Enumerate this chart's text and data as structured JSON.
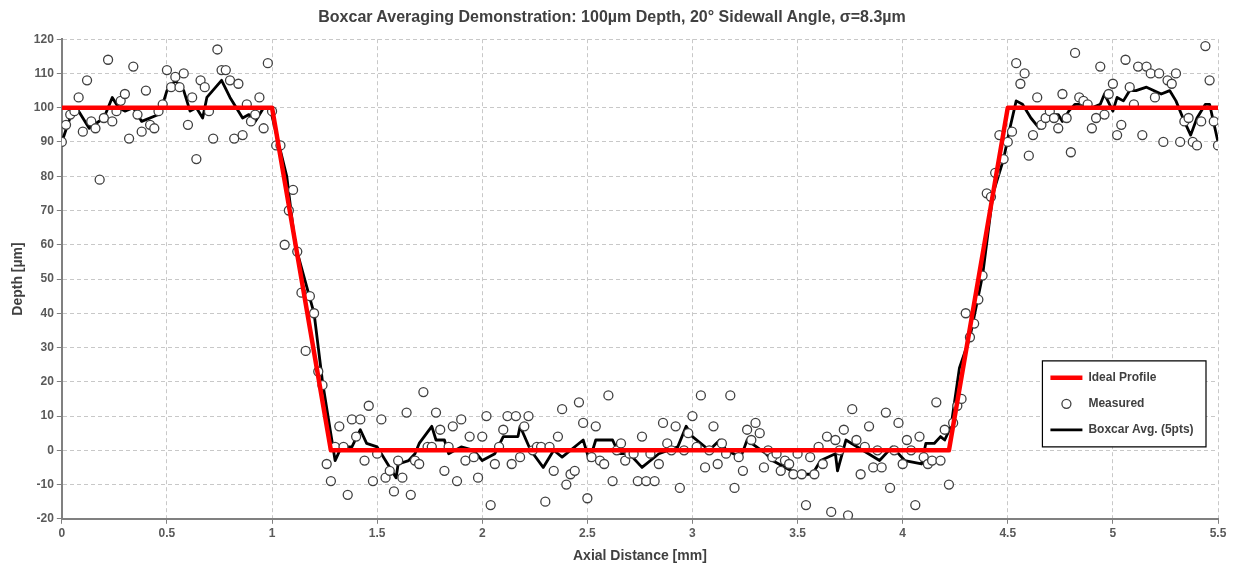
{
  "chart_data": {
    "type": "scatter",
    "title": "Boxcar Averaging Demonstration: 100µm Depth, 20° Sidewall Angle, σ=8.3µm",
    "xlabel": "Axial Distance [mm]",
    "ylabel": "Depth [µm]",
    "xlim": [
      0,
      5.5
    ],
    "xticks": [
      0,
      0.5,
      1,
      1.5,
      2,
      2.5,
      3,
      3.5,
      4,
      4.5,
      5,
      5.5
    ],
    "ylim": [
      -20,
      120
    ],
    "yticks": [
      -20,
      -10,
      0,
      10,
      20,
      30,
      40,
      50,
      60,
      70,
      80,
      90,
      100,
      110,
      120
    ],
    "grid": true,
    "legend": "bottom right",
    "series": [
      {
        "name": "Ideal Profile",
        "type": "line",
        "color": "#ff0000",
        "marker": "none",
        "line_style": "solid",
        "x": [
          0,
          1,
          1.28,
          4.22,
          4.5,
          5.5
        ],
        "values": [
          100,
          100,
          0,
          0,
          100,
          100
        ]
      },
      {
        "name": "Measured",
        "type": "scatter",
        "color": "#404040",
        "marker": "circle",
        "x": [
          0,
          0.02,
          0.04,
          0.06,
          0.08,
          0.1,
          0.12,
          0.14,
          0.16,
          0.18,
          0.2,
          0.22,
          0.24,
          0.26,
          0.28,
          0.3,
          0.32,
          0.34,
          0.36,
          0.38,
          0.4,
          0.42,
          0.44,
          0.46,
          0.48,
          0.5,
          0.52,
          0.54,
          0.56,
          0.58,
          0.6,
          0.62,
          0.64,
          0.66,
          0.68,
          0.7,
          0.72,
          0.74,
          0.76,
          0.78,
          0.8,
          0.82,
          0.84,
          0.86,
          0.88,
          0.9,
          0.92,
          0.94,
          0.96,
          0.98,
          1,
          1.02,
          1.04,
          1.06,
          1.08,
          1.1,
          1.12,
          1.14,
          1.16,
          1.18,
          1.2,
          1.22,
          1.24,
          1.26,
          1.28,
          1.3,
          1.32,
          1.34,
          1.36,
          1.38,
          1.4,
          1.42,
          1.44,
          1.46,
          1.48,
          1.5,
          1.52,
          1.54,
          1.56,
          1.58,
          1.6,
          1.62,
          1.64,
          1.66,
          1.68,
          1.7,
          1.72,
          1.74,
          1.76,
          1.78,
          1.8,
          1.82,
          1.84,
          1.86,
          1.88,
          1.9,
          1.92,
          1.94,
          1.96,
          1.98,
          2,
          2.02,
          2.04,
          2.06,
          2.08,
          2.1,
          2.12,
          2.14,
          2.16,
          2.18,
          2.2,
          2.22,
          2.24,
          2.26,
          2.28,
          2.3,
          2.32,
          2.34,
          2.36,
          2.38,
          2.4,
          2.42,
          2.44,
          2.46,
          2.48,
          2.5,
          2.52,
          2.54,
          2.56,
          2.58,
          2.6,
          2.62,
          2.64,
          2.66,
          2.68,
          2.7,
          2.72,
          2.74,
          2.76,
          2.78,
          2.8,
          2.82,
          2.84,
          2.86,
          2.88,
          2.9,
          2.92,
          2.94,
          2.96,
          2.98,
          3,
          3.02,
          3.04,
          3.06,
          3.08,
          3.1,
          3.12,
          3.14,
          3.16,
          3.18,
          3.2,
          3.22,
          3.24,
          3.26,
          3.28,
          3.3,
          3.32,
          3.34,
          3.36,
          3.38,
          3.4,
          3.42,
          3.44,
          3.46,
          3.48,
          3.5,
          3.52,
          3.54,
          3.56,
          3.58,
          3.6,
          3.62,
          3.64,
          3.66,
          3.68,
          3.7,
          3.72,
          3.74,
          3.76,
          3.78,
          3.8,
          3.82,
          3.84,
          3.86,
          3.88,
          3.9,
          3.92,
          3.94,
          3.96,
          3.98,
          4,
          4.02,
          4.04,
          4.06,
          4.08,
          4.1,
          4.12,
          4.14,
          4.16,
          4.18,
          4.2,
          4.22,
          4.24,
          4.26,
          4.28,
          4.3,
          4.32,
          4.34,
          4.36,
          4.38,
          4.4,
          4.42,
          4.44,
          4.46,
          4.48,
          4.5,
          4.52,
          4.54,
          4.56,
          4.58,
          4.6,
          4.62,
          4.64,
          4.66,
          4.68,
          4.7,
          4.72,
          4.74,
          4.76,
          4.78,
          4.8,
          4.82,
          4.84,
          4.86,
          4.88,
          4.9,
          4.92,
          4.94,
          4.96,
          4.98,
          5,
          5.02,
          5.04,
          5.06,
          5.08,
          5.1,
          5.12,
          5.14,
          5.16,
          5.18,
          5.2,
          5.22,
          5.24,
          5.26,
          5.28,
          5.3,
          5.32,
          5.34,
          5.36,
          5.38,
          5.4,
          5.42,
          5.44,
          5.46,
          5.48,
          5.5
        ],
        "values": [
          90,
          95,
          98,
          99,
          103,
          93,
          108,
          96,
          94,
          79,
          97,
          114,
          96,
          99,
          102,
          104,
          91,
          112,
          98,
          93,
          105,
          95,
          94,
          99,
          101,
          111,
          106,
          109,
          106,
          110,
          95,
          103,
          85,
          108,
          106,
          99,
          91,
          117,
          111,
          111,
          108,
          91,
          107,
          92,
          101,
          96,
          98,
          103,
          94,
          113,
          99,
          89,
          89,
          60,
          70,
          76,
          58,
          46,
          29,
          45,
          40,
          23,
          19,
          -4,
          -9,
          1,
          7,
          1,
          -13,
          9,
          4,
          9,
          -3,
          13,
          -9,
          -1,
          9,
          -8,
          -6,
          -12,
          -3,
          -8,
          11,
          -13,
          -3,
          -4,
          17,
          1,
          1,
          11,
          6,
          -6,
          1,
          7,
          -9,
          9,
          -3,
          4,
          -2,
          -8,
          4,
          10,
          -16,
          -4,
          1,
          6,
          10,
          -4,
          10,
          -2,
          7,
          10,
          0,
          1,
          1,
          -15,
          1,
          -6,
          4,
          12,
          -10,
          -7,
          -6,
          14,
          8,
          -14,
          -2,
          7,
          -3,
          -4,
          16,
          -9,
          0,
          2,
          -3,
          -1,
          -1,
          -9,
          4,
          -9,
          -1,
          -9,
          -4,
          8,
          2,
          0,
          7,
          -11,
          0,
          5,
          10,
          1,
          16,
          -5,
          0,
          7,
          -4,
          2,
          -1,
          16,
          -11,
          -2,
          -6,
          6,
          3,
          8,
          5,
          -5,
          0,
          -2,
          -1,
          -6,
          -3,
          -4,
          -7,
          -1,
          -7,
          -16,
          -2,
          -7,
          1,
          -4,
          4,
          -18,
          3,
          0,
          6,
          -19,
          12,
          3,
          -7,
          1,
          7,
          -5,
          0,
          -5,
          11,
          -11,
          0,
          8,
          -4,
          3,
          0,
          -16,
          4,
          -2,
          -4,
          -3,
          14,
          -3,
          6,
          -10,
          8,
          13,
          15,
          40,
          33,
          37,
          44,
          51,
          75,
          74,
          81,
          92,
          85,
          90,
          93,
          113,
          107,
          110,
          86,
          92,
          103,
          95,
          97,
          99,
          97,
          94,
          104,
          97,
          87,
          116,
          103,
          102,
          101,
          94,
          97,
          112,
          98,
          104,
          107,
          92,
          95,
          114,
          106,
          101,
          112,
          92,
          112,
          110,
          103,
          110,
          90,
          108,
          107,
          110,
          90,
          96,
          97,
          90,
          89,
          96,
          118,
          108,
          96,
          89
        ]
      },
      {
        "name": "Boxcar Avg. (5pts)",
        "type": "line",
        "color": "#000000",
        "marker": "none",
        "line_style": "solid",
        "x": [
          0,
          0.05,
          0.07,
          0.13,
          0.2,
          0.24,
          0.27,
          0.3,
          0.34,
          0.38,
          0.46,
          0.48,
          0.5,
          0.54,
          0.58,
          0.61,
          0.64,
          0.67,
          0.69,
          0.76,
          0.8,
          0.86,
          0.89,
          0.92,
          0.96,
          0.99,
          1.03,
          1.07,
          1.11,
          1.2,
          1.24,
          1.3,
          1.33,
          1.38,
          1.42,
          1.45,
          1.5,
          1.55,
          1.59,
          1.6,
          1.65,
          1.68,
          1.7,
          1.76,
          1.78,
          1.82,
          1.84,
          1.9,
          1.96,
          2,
          2.06,
          2.1,
          2.17,
          2.18,
          2.23,
          2.29,
          2.34,
          2.38,
          2.48,
          2.51,
          2.54,
          2.62,
          2.65,
          2.7,
          2.76,
          2.84,
          2.93,
          2.97,
          3,
          3.08,
          3.13,
          3.16,
          3.23,
          3.26,
          3.35,
          3.38,
          3.47,
          3.5,
          3.57,
          3.61,
          3.68,
          3.69,
          3.73,
          3.81,
          3.89,
          3.95,
          4.01,
          4.09,
          4.11,
          4.15,
          4.18,
          4.2,
          4.23,
          4.27,
          4.32,
          4.38,
          4.43,
          4.48,
          4.51,
          4.54,
          4.57,
          4.61,
          4.65,
          4.67,
          4.7,
          4.74,
          4.76,
          4.79,
          4.82,
          4.88,
          4.9,
          4.94,
          4.96,
          5,
          5.02,
          5.05,
          5.08,
          5.11,
          5.16,
          5.23,
          5.27,
          5.3,
          5.34,
          5.37,
          5.4,
          5.44,
          5.46,
          5.5
        ],
        "values": [
          90,
          99,
          100,
          94,
          97,
          103,
          100,
          99,
          100,
          96,
          98,
          101,
          105,
          108,
          105,
          99,
          100,
          97,
          103,
          108,
          103,
          97,
          98,
          96,
          100,
          100,
          90,
          80,
          60,
          40,
          20,
          -3,
          1,
          1,
          6,
          2,
          1,
          -4,
          -8,
          -4,
          -3,
          -1,
          2,
          7,
          3,
          3,
          -1,
          1,
          0,
          -3,
          -1,
          4,
          4,
          7,
          0,
          -5,
          0,
          -2,
          3,
          -3,
          3,
          3,
          -1,
          -1,
          -5,
          -1,
          1,
          7,
          4,
          0,
          3,
          0,
          -2,
          3,
          -1,
          -3,
          -6,
          -7,
          -7,
          -3,
          -1,
          -6,
          3,
          0,
          -3,
          1,
          -3,
          -4,
          2,
          2,
          4,
          3,
          7,
          24,
          33,
          51,
          75,
          85,
          94,
          102,
          101,
          97,
          94,
          97,
          98,
          98,
          96,
          99,
          101,
          101,
          100,
          101,
          104,
          99,
          103,
          102,
          105,
          105,
          106,
          104,
          105,
          102,
          96,
          92,
          97,
          101,
          101,
          90
        ]
      }
    ]
  }
}
